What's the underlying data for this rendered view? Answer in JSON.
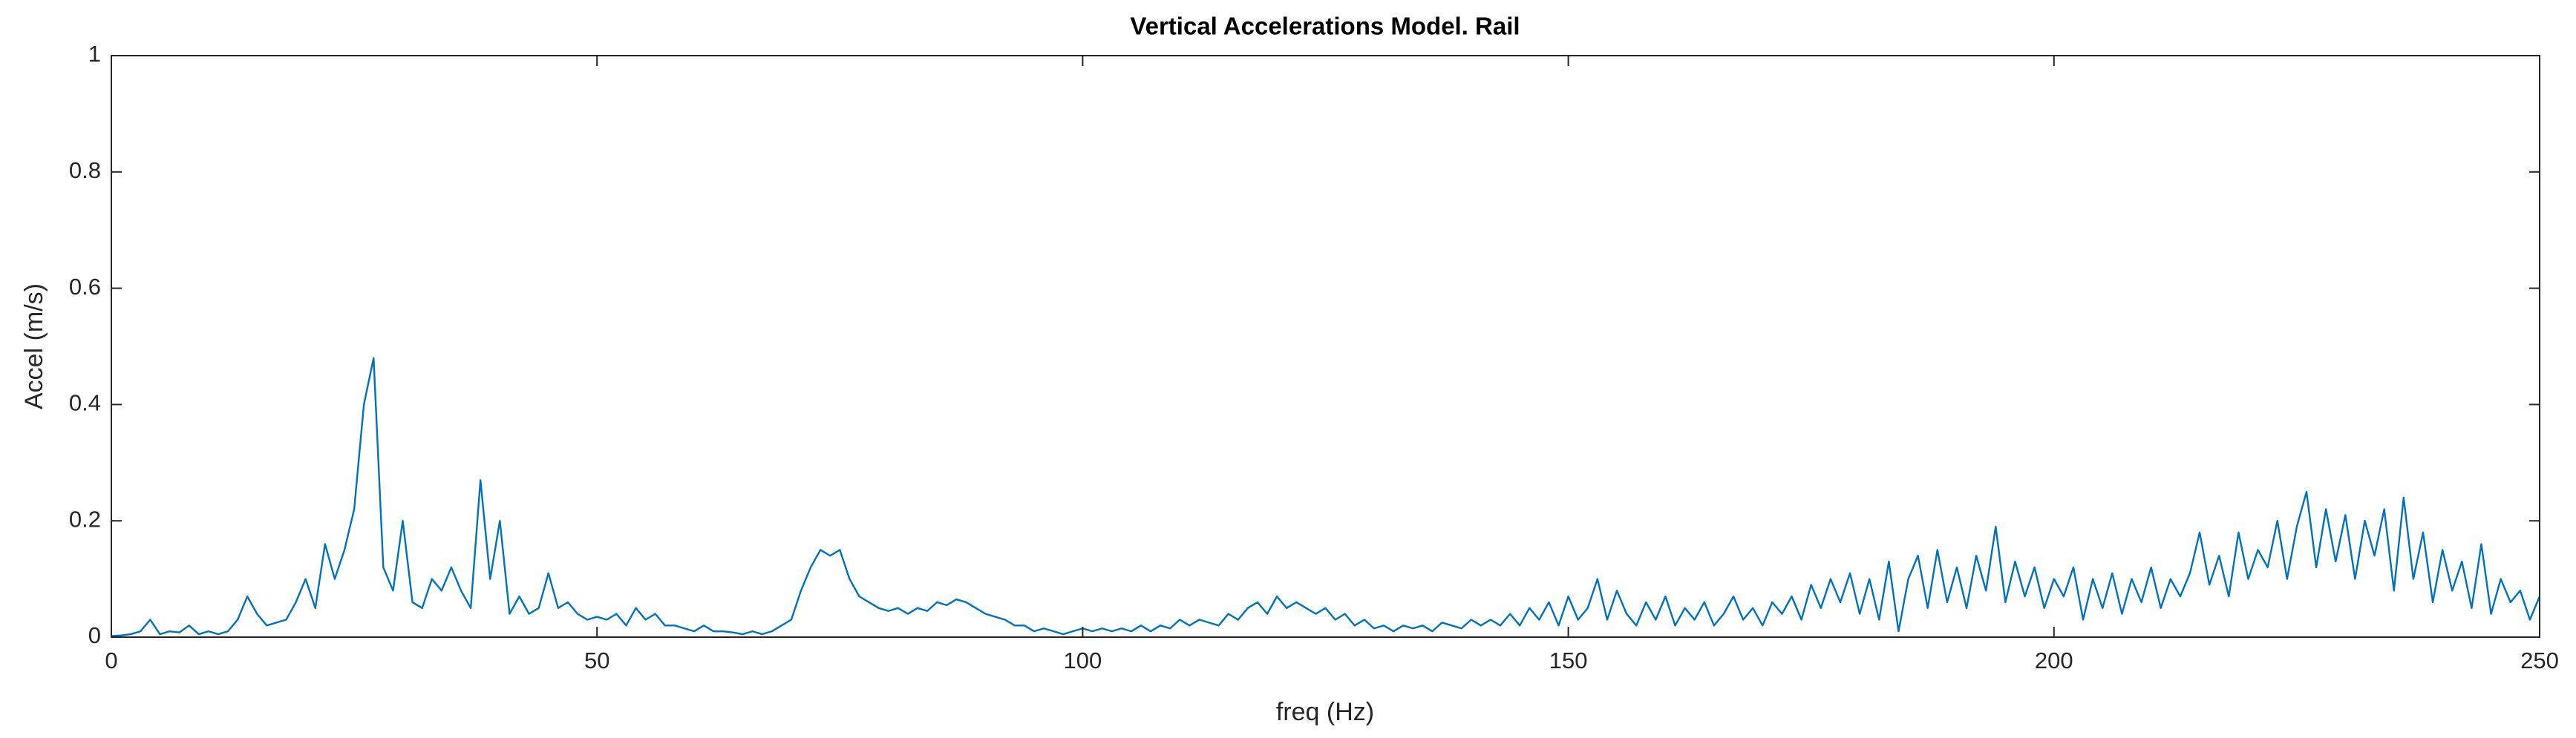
{
  "chart_data": {
    "type": "line",
    "title": "Vertical Accelerations Model. Rail",
    "xlabel": "freq (Hz)",
    "ylabel": "Accel (m/s)",
    "color": "#0072bd",
    "xlim": [
      0,
      250
    ],
    "xticks": [
      0,
      50,
      100,
      150,
      200,
      250
    ],
    "ylim": [
      0,
      1
    ],
    "yticks": [
      0,
      0.2,
      0.4,
      0.6,
      0.8,
      1
    ],
    "x": [
      0,
      1,
      2,
      3,
      4,
      5,
      6,
      7,
      8,
      9,
      10,
      11,
      12,
      13,
      14,
      15,
      16,
      17,
      18,
      19,
      20,
      21,
      22,
      23,
      24,
      25,
      26,
      27,
      28,
      29,
      30,
      31,
      32,
      33,
      34,
      35,
      36,
      37,
      38,
      39,
      40,
      41,
      42,
      43,
      44,
      45,
      46,
      47,
      48,
      49,
      50,
      51,
      52,
      53,
      54,
      55,
      56,
      57,
      58,
      59,
      60,
      61,
      62,
      63,
      64,
      65,
      66,
      67,
      68,
      69,
      70,
      71,
      72,
      73,
      74,
      75,
      76,
      77,
      78,
      79,
      80,
      81,
      82,
      83,
      84,
      85,
      86,
      87,
      88,
      89,
      90,
      91,
      92,
      93,
      94,
      95,
      96,
      97,
      98,
      99,
      100,
      101,
      102,
      103,
      104,
      105,
      106,
      107,
      108,
      109,
      110,
      111,
      112,
      113,
      114,
      115,
      116,
      117,
      118,
      119,
      120,
      121,
      122,
      123,
      124,
      125,
      126,
      127,
      128,
      129,
      130,
      131,
      132,
      133,
      134,
      135,
      136,
      137,
      138,
      139,
      140,
      141,
      142,
      143,
      144,
      145,
      146,
      147,
      148,
      149,
      150,
      151,
      152,
      153,
      154,
      155,
      156,
      157,
      158,
      159,
      160,
      161,
      162,
      163,
      164,
      165,
      166,
      167,
      168,
      169,
      170,
      171,
      172,
      173,
      174,
      175,
      176,
      177,
      178,
      179,
      180,
      181,
      182,
      183,
      184,
      185,
      186,
      187,
      188,
      189,
      190,
      191,
      192,
      193,
      194,
      195,
      196,
      197,
      198,
      199,
      200,
      201,
      202,
      203,
      204,
      205,
      206,
      207,
      208,
      209,
      210,
      211,
      212,
      213,
      214,
      215,
      216,
      217,
      218,
      219,
      220,
      221,
      222,
      223,
      224,
      225,
      226,
      227,
      228,
      229,
      230,
      231,
      232,
      233,
      234,
      235,
      236,
      237,
      238,
      239,
      240,
      241,
      242,
      243,
      244,
      245,
      246,
      247,
      248,
      249,
      250
    ],
    "values": [
      0.002,
      0.003,
      0.005,
      0.01,
      0.03,
      0.005,
      0.01,
      0.008,
      0.02,
      0.005,
      0.01,
      0.005,
      0.01,
      0.03,
      0.07,
      0.04,
      0.02,
      0.025,
      0.03,
      0.06,
      0.1,
      0.05,
      0.16,
      0.1,
      0.15,
      0.22,
      0.4,
      0.48,
      0.12,
      0.08,
      0.2,
      0.06,
      0.05,
      0.1,
      0.08,
      0.12,
      0.08,
      0.05,
      0.27,
      0.1,
      0.2,
      0.04,
      0.07,
      0.04,
      0.05,
      0.11,
      0.05,
      0.06,
      0.04,
      0.03,
      0.035,
      0.03,
      0.04,
      0.02,
      0.05,
      0.03,
      0.04,
      0.02,
      0.02,
      0.015,
      0.01,
      0.02,
      0.01,
      0.01,
      0.008,
      0.005,
      0.01,
      0.005,
      0.01,
      0.02,
      0.03,
      0.08,
      0.12,
      0.15,
      0.14,
      0.15,
      0.1,
      0.07,
      0.06,
      0.05,
      0.045,
      0.05,
      0.04,
      0.05,
      0.045,
      0.06,
      0.055,
      0.065,
      0.06,
      0.05,
      0.04,
      0.035,
      0.03,
      0.02,
      0.02,
      0.01,
      0.015,
      0.01,
      0.005,
      0.01,
      0.015,
      0.01,
      0.015,
      0.01,
      0.015,
      0.01,
      0.02,
      0.01,
      0.02,
      0.015,
      0.03,
      0.02,
      0.03,
      0.025,
      0.02,
      0.04,
      0.03,
      0.05,
      0.06,
      0.04,
      0.07,
      0.05,
      0.06,
      0.05,
      0.04,
      0.05,
      0.03,
      0.04,
      0.02,
      0.03,
      0.015,
      0.02,
      0.01,
      0.02,
      0.015,
      0.02,
      0.01,
      0.025,
      0.02,
      0.015,
      0.03,
      0.02,
      0.03,
      0.02,
      0.04,
      0.02,
      0.05,
      0.03,
      0.06,
      0.02,
      0.07,
      0.03,
      0.05,
      0.1,
      0.03,
      0.08,
      0.04,
      0.02,
      0.06,
      0.03,
      0.07,
      0.02,
      0.05,
      0.03,
      0.06,
      0.02,
      0.04,
      0.07,
      0.03,
      0.05,
      0.02,
      0.06,
      0.04,
      0.07,
      0.03,
      0.09,
      0.05,
      0.1,
      0.06,
      0.11,
      0.04,
      0.1,
      0.03,
      0.13,
      0.01,
      0.1,
      0.14,
      0.05,
      0.15,
      0.06,
      0.12,
      0.05,
      0.14,
      0.08,
      0.19,
      0.06,
      0.13,
      0.07,
      0.12,
      0.05,
      0.1,
      0.07,
      0.12,
      0.03,
      0.1,
      0.05,
      0.11,
      0.04,
      0.1,
      0.06,
      0.12,
      0.05,
      0.1,
      0.07,
      0.11,
      0.18,
      0.09,
      0.14,
      0.07,
      0.18,
      0.1,
      0.15,
      0.12,
      0.2,
      0.1,
      0.19,
      0.25,
      0.12,
      0.22,
      0.13,
      0.21,
      0.1,
      0.2,
      0.14,
      0.22,
      0.08,
      0.24,
      0.1,
      0.18,
      0.06,
      0.15,
      0.08,
      0.13,
      0.05,
      0.16,
      0.04,
      0.1,
      0.06,
      0.08,
      0.03,
      0.07
    ]
  }
}
